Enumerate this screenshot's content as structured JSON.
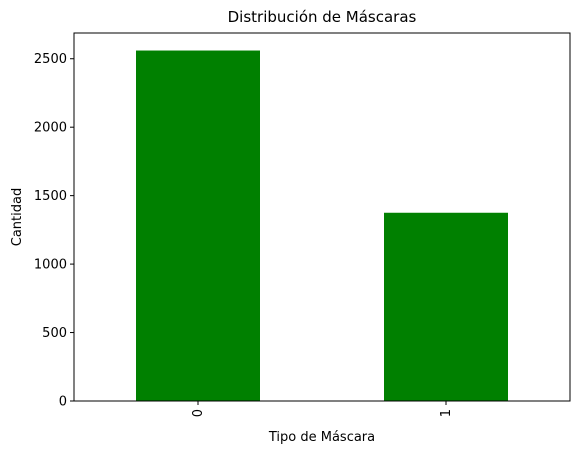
{
  "chart_data": {
    "type": "bar",
    "title": "Distribución de Máscaras",
    "xlabel": "Tipo de Máscara",
    "ylabel": "Cantidad",
    "categories": [
      "0",
      "1"
    ],
    "values": [
      2560,
      1375
    ],
    "ylim": [
      0,
      2688
    ],
    "yticks": [
      0,
      500,
      1000,
      1500,
      2000,
      2500
    ],
    "grid": false,
    "x_tick_rotation": 90,
    "bar_color": "#008000"
  }
}
